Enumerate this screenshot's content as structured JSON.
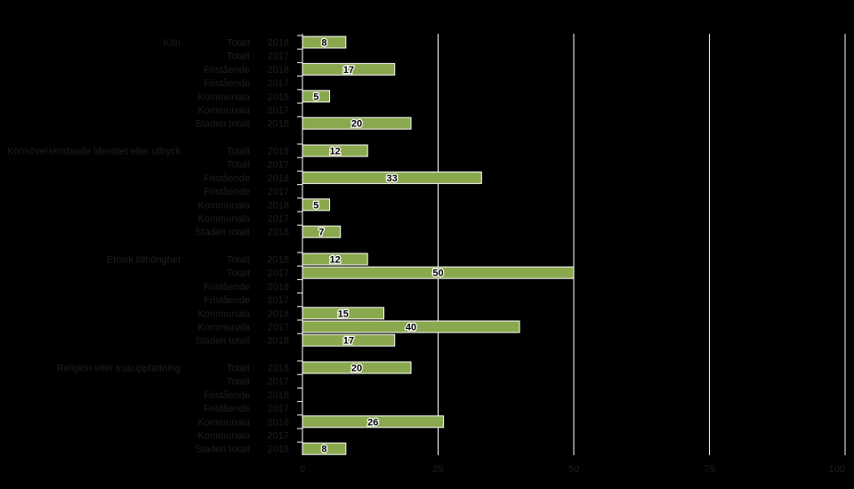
{
  "chart_data": {
    "type": "bar",
    "orientation": "horizontal",
    "groups": [
      {
        "name": "Kön",
        "rows": [
          {
            "sector": "Totalt",
            "year": "2018",
            "value": 8
          },
          {
            "sector": "Totalt",
            "year": "2017",
            "value": null
          },
          {
            "sector": "Fristående",
            "year": "2018",
            "value": 17
          },
          {
            "sector": "Fristående",
            "year": "2017",
            "value": null
          },
          {
            "sector": "Kommunala",
            "year": "2018",
            "value": 5
          },
          {
            "sector": "Kommunala",
            "year": "2017",
            "value": null
          },
          {
            "sector": "Staden totalt",
            "year": "2018",
            "value": 20
          }
        ]
      },
      {
        "name": "Könsöverskridande identitet eller uttryck",
        "rows": [
          {
            "sector": "Totalt",
            "year": "2018",
            "value": 12
          },
          {
            "sector": "Totalt",
            "year": "2017",
            "value": null
          },
          {
            "sector": "Fristående",
            "year": "2018",
            "value": 33
          },
          {
            "sector": "Fristående",
            "year": "2017",
            "value": null
          },
          {
            "sector": "Kommunala",
            "year": "2018",
            "value": 5
          },
          {
            "sector": "Kommunala",
            "year": "2017",
            "value": null
          },
          {
            "sector": "Staden totalt",
            "year": "2018",
            "value": 7
          }
        ]
      },
      {
        "name": "Etnisk tillhörighet",
        "rows": [
          {
            "sector": "Totalt",
            "year": "2018",
            "value": 12
          },
          {
            "sector": "Totalt",
            "year": "2017",
            "value": 50
          },
          {
            "sector": "Fristående",
            "year": "2018",
            "value": null
          },
          {
            "sector": "Fristående",
            "year": "2017",
            "value": null
          },
          {
            "sector": "Kommunala",
            "year": "2018",
            "value": 15
          },
          {
            "sector": "Kommunala",
            "year": "2017",
            "value": 40
          },
          {
            "sector": "Staden totalt",
            "year": "2018",
            "value": 17
          }
        ]
      },
      {
        "name": "Religion eller trosuppfattning",
        "rows": [
          {
            "sector": "Totalt",
            "year": "2018",
            "value": 20
          },
          {
            "sector": "Totalt",
            "year": "2017",
            "value": null
          },
          {
            "sector": "Fristående",
            "year": "2018",
            "value": null
          },
          {
            "sector": "Fristående",
            "year": "2017",
            "value": null
          },
          {
            "sector": "Kommunala",
            "year": "2018",
            "value": 26
          },
          {
            "sector": "Kommunala",
            "year": "2017",
            "value": null
          },
          {
            "sector": "Staden totalt",
            "year": "2018",
            "value": 8
          }
        ]
      }
    ],
    "x_ticks": [
      "0",
      "25",
      "50",
      "75",
      "100"
    ],
    "xlim": [
      0,
      100
    ],
    "grid": true,
    "title": "",
    "xlabel": "",
    "ylabel": "",
    "colors": {
      "background": "#000000",
      "bar_fill": "#8aa84e",
      "bar_stroke": "#ffffff",
      "gridline": "#ffffff",
      "axis": "#ffffff",
      "label_text": "#1e1e1e",
      "data_label_text": "#000000",
      "data_label_halo": "#ffffff"
    }
  }
}
